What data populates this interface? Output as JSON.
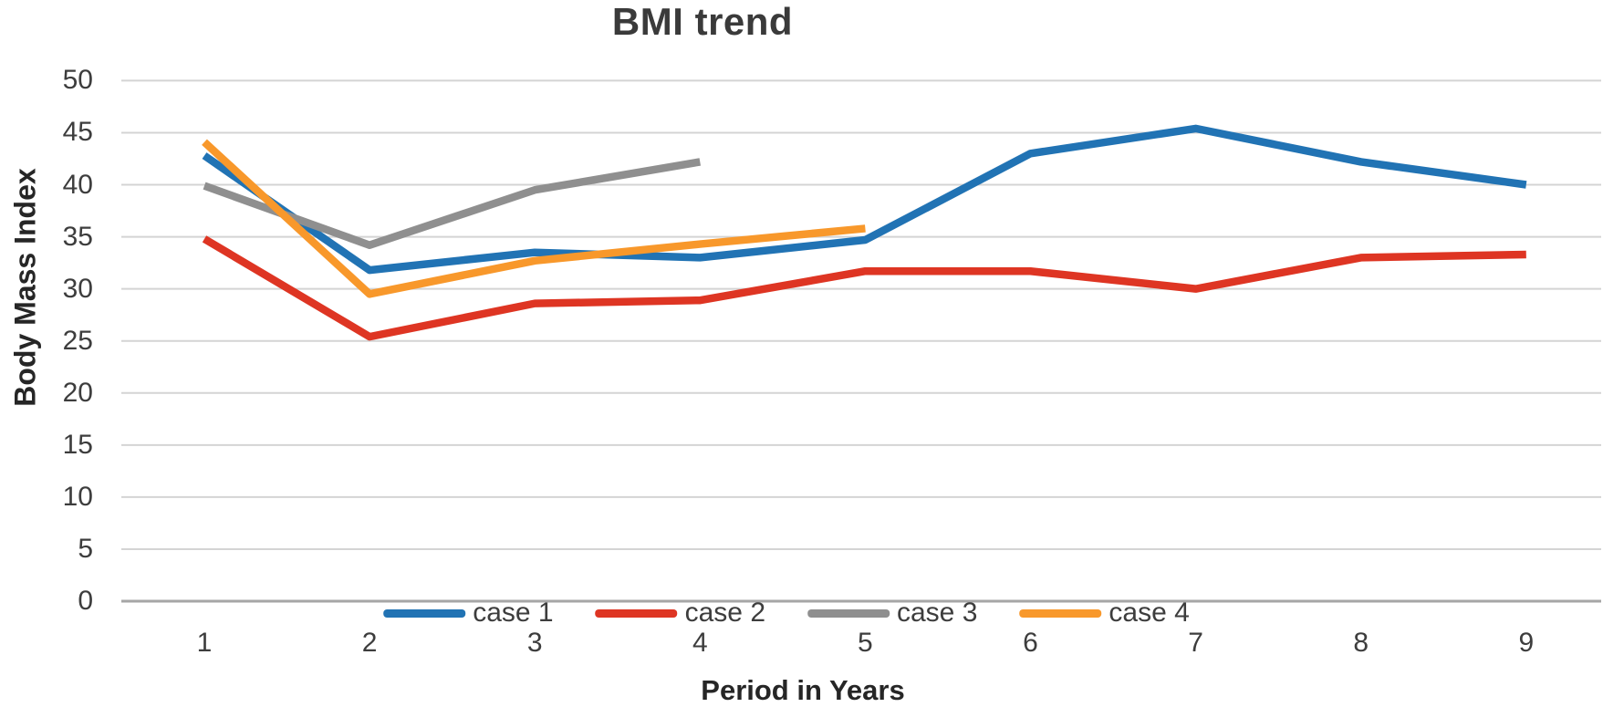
{
  "title": "BMI trend",
  "axes": {
    "x_title": "Period in Years",
    "y_title": "Body Mass Index"
  },
  "colors": {
    "case_1": "#2173B4",
    "case_2": "#DE3523",
    "case_3": "#8F8F8F",
    "case_4": "#F8982B",
    "gridline": "#D4D4D4",
    "zero_line": "#A6A6A6",
    "text": "#3D3D3D"
  },
  "chart_data": {
    "type": "line",
    "title": "BMI trend",
    "xlabel": "Period in Years",
    "ylabel": "Body Mass Index",
    "categories": [
      "1",
      "2",
      "3",
      "4",
      "5",
      "6",
      "7",
      "8",
      "9"
    ],
    "yticks": [
      0,
      5,
      10,
      15,
      20,
      25,
      30,
      35,
      40,
      45,
      50
    ],
    "ylim": [
      0,
      50
    ],
    "grid": true,
    "legend_position": "bottom-center",
    "series": [
      {
        "name": "case 1",
        "color": "#2173B4",
        "values": [
          42.8,
          31.8,
          33.5,
          33.0,
          34.7,
          43.0,
          45.4,
          42.2,
          40.0
        ]
      },
      {
        "name": "case 2",
        "color": "#DE3523",
        "values": [
          34.8,
          25.4,
          28.6,
          28.9,
          31.7,
          31.7,
          30.0,
          33.0,
          33.3
        ]
      },
      {
        "name": "case 3",
        "color": "#8F8F8F",
        "values": [
          39.9,
          34.2,
          39.5,
          42.2,
          null,
          null,
          null,
          null,
          null
        ]
      },
      {
        "name": "case 4",
        "color": "#F8982B",
        "values": [
          44.1,
          29.5,
          32.7,
          34.3,
          35.8,
          null,
          null,
          null,
          null
        ]
      }
    ]
  }
}
